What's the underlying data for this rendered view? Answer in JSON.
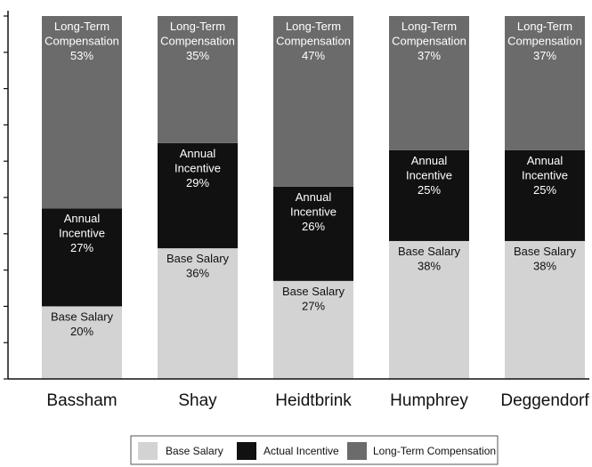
{
  "chart_data": {
    "type": "bar",
    "stacked": true,
    "percent_stacked": true,
    "categories": [
      "Bassham",
      "Shay",
      "Heidtbrink",
      "Humphrey",
      "Deggendorf"
    ],
    "series": [
      {
        "name": "Base Salary",
        "values": [
          20,
          36,
          27,
          38,
          38
        ],
        "color": "#d3d3d3",
        "segment_label": [
          "Base Salary"
        ]
      },
      {
        "name": "Actual Incentive",
        "values": [
          27,
          29,
          26,
          25,
          25
        ],
        "color": "#111111",
        "segment_label": [
          "Annual",
          "Incentive"
        ]
      },
      {
        "name": "Long-Term Compensation",
        "values": [
          53,
          35,
          47,
          37,
          37
        ],
        "color": "#6b6b6b",
        "segment_label": [
          "Long-Term",
          "Compensation"
        ]
      }
    ],
    "ylim": [
      0,
      100
    ],
    "ytick_step": 10,
    "ytick_labels_shown": false,
    "grid": false,
    "legend_position": "bottom-center"
  }
}
